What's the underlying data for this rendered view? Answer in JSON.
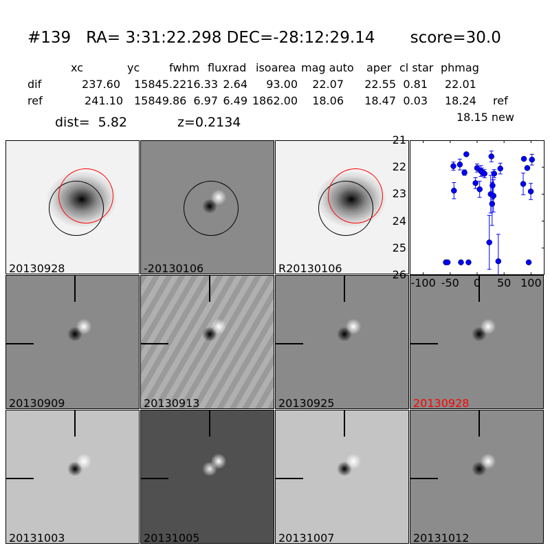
{
  "title": "#139   RA= 3:31:22.298 DEC=-28:12:29.14       score=30.0",
  "table": {
    "headers": [
      "xc",
      "yc",
      "fwhm",
      "fluxrad",
      "isoarea",
      "mag auto",
      "aper",
      "cl star",
      "phmag"
    ],
    "rows": [
      {
        "label": "dif",
        "values": [
          "237.60",
          "15845.22",
          "16.33",
          "2.64",
          "93.00",
          "22.07",
          "22.55",
          "0.81",
          "22.01"
        ],
        "suffix": ""
      },
      {
        "label": "ref",
        "values": [
          "241.10",
          "15849.86",
          "6.97",
          "6.49",
          "1862.00",
          "18.06",
          "18.47",
          "0.03",
          "18.24"
        ],
        "suffix": "ref"
      }
    ],
    "new_phmag": "18.15 new",
    "dist": "dist=  5.82",
    "z": "z=0.2134"
  },
  "panels": [
    {
      "label": "20130928",
      "kind": "ref",
      "label_color": "#000000"
    },
    {
      "label": "-20130106",
      "kind": "diff",
      "label_color": "#000000"
    },
    {
      "label": "R20130106",
      "kind": "ref",
      "label_color": "#000000"
    },
    {
      "label": "20130909",
      "kind": "diff",
      "label_color": "#000000"
    },
    {
      "label": "20130913",
      "kind": "noisy",
      "label_color": "#000000"
    },
    {
      "label": "20130925",
      "kind": "diff",
      "label_color": "#000000"
    },
    {
      "label": "20130928",
      "kind": "diff",
      "label_color": "#ff0000"
    },
    {
      "label": "20131003",
      "kind": "light",
      "label_color": "#000000"
    },
    {
      "label": "20131005",
      "kind": "dark",
      "label_color": "#000000"
    },
    {
      "label": "20131007",
      "kind": "light",
      "label_color": "#000000"
    },
    {
      "label": "20131012",
      "kind": "diff2",
      "label_color": "#000000"
    }
  ],
  "chart_data": {
    "type": "scatter",
    "xlim": [
      -125,
      125
    ],
    "ylim": [
      26,
      21
    ],
    "y_inverted": true,
    "xticks": [
      -100,
      -50,
      0,
      50,
      100
    ],
    "yticks": [
      21,
      22,
      23,
      24,
      25,
      26
    ],
    "color": "#0000ff",
    "grid": false,
    "points": [
      {
        "x": -44,
        "y": 21.96,
        "err": 0.15
      },
      {
        "x": -32,
        "y": 21.9,
        "err": 0.2
      },
      {
        "x": -20,
        "y": 21.52,
        "err": 0.05
      },
      {
        "x": -23.5,
        "y": 22.2,
        "err": 0.1
      },
      {
        "x": -43,
        "y": 22.87,
        "err": 0.3
      },
      {
        "x": 0,
        "y": 22.03,
        "err": 0.15
      },
      {
        "x": -3,
        "y": 22.59,
        "err": 0.2
      },
      {
        "x": 4.7,
        "y": 22.82,
        "err": 0.3
      },
      {
        "x": 7,
        "y": 22.14,
        "err": 0.2
      },
      {
        "x": 9,
        "y": 22.18,
        "err": 0.15
      },
      {
        "x": 13.7,
        "y": 22.24,
        "err": 0.15
      },
      {
        "x": 26.5,
        "y": 21.6,
        "err": 0.2
      },
      {
        "x": 28.6,
        "y": 22.68,
        "err": 0.5
      },
      {
        "x": 31.6,
        "y": 22.24,
        "err": 0.15
      },
      {
        "x": 25.2,
        "y": 23.0,
        "err": 0.7
      },
      {
        "x": 30.3,
        "y": 23.06,
        "err": 0.6
      },
      {
        "x": 27.8,
        "y": 23.36,
        "err": 0.8
      },
      {
        "x": 22.6,
        "y": 24.79,
        "err": 1.0
      },
      {
        "x": 39.3,
        "y": 25.49,
        "err": 1.0
      },
      {
        "x": 43,
        "y": 22.05,
        "err": 0.2
      },
      {
        "x": 85.5,
        "y": 22.62,
        "err": 0.4
      },
      {
        "x": 86.8,
        "y": 21.69,
        "err": 0.05
      },
      {
        "x": 93,
        "y": 22.03,
        "err": 0.05
      },
      {
        "x": 101.7,
        "y": 21.72,
        "err": 0.2
      },
      {
        "x": 99.6,
        "y": 22.9,
        "err": 0.3
      },
      {
        "x": -58,
        "y": 25.53,
        "err": 0.05
      },
      {
        "x": -54.7,
        "y": 25.53,
        "err": 0.05
      },
      {
        "x": -30,
        "y": 25.53,
        "err": 0.05
      },
      {
        "x": -16,
        "y": 25.53,
        "err": 0.05
      },
      {
        "x": 95.7,
        "y": 25.53,
        "err": 0.05
      }
    ]
  }
}
